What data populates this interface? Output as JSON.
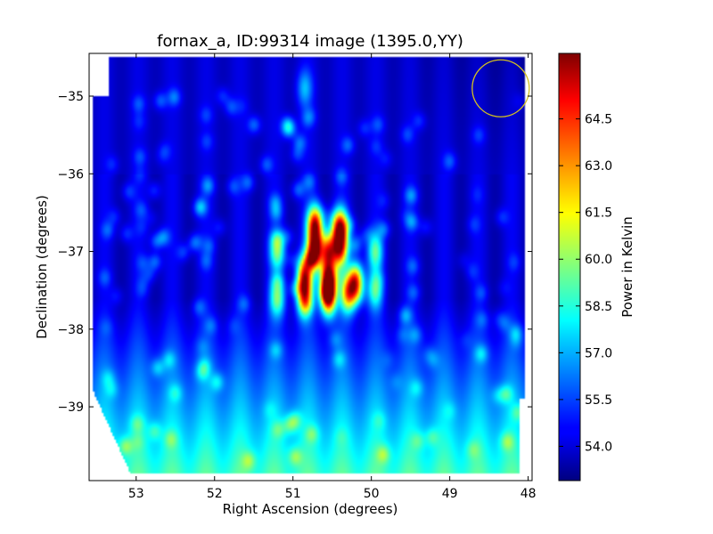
{
  "chart_data": {
    "type": "heatmap",
    "title": "fornax_a, ID:99314 image (1395.0,YY)",
    "xlabel": "Right Ascension (degrees)",
    "ylabel": "Declination (degrees)",
    "xlim": [
      53.6,
      47.95
    ],
    "ylim": [
      -39.95,
      -34.45
    ],
    "x_inverted": true,
    "xticks": [
      53,
      52,
      51,
      50,
      49,
      48
    ],
    "yticks": [
      -35,
      -36,
      -37,
      -38,
      -39
    ],
    "colormap": "jet",
    "colorbar": {
      "label": "Power in Kelvin",
      "range": [
        52.9,
        66.6
      ],
      "ticks": [
        "54.0",
        "55.5",
        "57.0",
        "58.5",
        "60.0",
        "61.5",
        "63.0",
        "64.5"
      ]
    },
    "background_level": 54.0,
    "gradient": {
      "bottom_level": 59.0,
      "bottom_dec": -39.9,
      "top_dec": -37.6
    },
    "source_grid": {
      "ra_columns": [
        50.85,
        50.72,
        50.55,
        50.4,
        50.2
      ],
      "dec_rows": [
        -36.6,
        -36.98,
        -37.38,
        -37.6
      ]
    },
    "sources": [
      {
        "ra": 50.72,
        "dec": -36.65,
        "peak": 65.0
      },
      {
        "ra": 50.4,
        "dec": -36.7,
        "peak": 65.2
      },
      {
        "ra": 50.72,
        "dec": -36.98,
        "peak": 65.3
      },
      {
        "ra": 50.55,
        "dec": -37.0,
        "peak": 63.5
      },
      {
        "ra": 50.4,
        "dec": -36.98,
        "peak": 62.8
      },
      {
        "ra": 50.85,
        "dec": -37.3,
        "peak": 63.5
      },
      {
        "ra": 50.55,
        "dec": -37.38,
        "peak": 66.0
      },
      {
        "ra": 50.2,
        "dec": -37.4,
        "peak": 64.5
      },
      {
        "ra": 50.85,
        "dec": -37.6,
        "peak": 63.0
      },
      {
        "ra": 50.55,
        "dec": -37.6,
        "peak": 64.0
      },
      {
        "ra": 50.3,
        "dec": -37.55,
        "peak": 62.0
      },
      {
        "ra": 51.2,
        "dec": -37.0,
        "peak": 59.5
      },
      {
        "ra": 49.95,
        "dec": -37.0,
        "peak": 59.0
      },
      {
        "ra": 51.2,
        "dec": -37.6,
        "peak": 59.5
      },
      {
        "ra": 49.95,
        "dec": -37.5,
        "peak": 59.0
      },
      {
        "ra": 50.85,
        "dec": -34.9,
        "peak": 57.0
      }
    ],
    "beam_marker": {
      "ra": 48.35,
      "dec": -34.9,
      "color": "#d4c020"
    }
  }
}
